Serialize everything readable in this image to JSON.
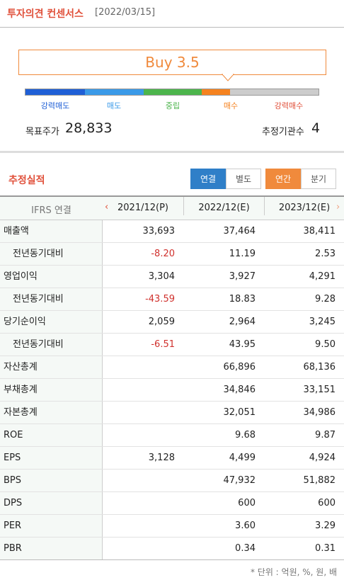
{
  "header": {
    "title": "투자의견 컨센서스",
    "date": "[2022/03/15]"
  },
  "consensus": {
    "rating": "Buy 3.5",
    "scale": [
      "강력매도",
      "매도",
      "중립",
      "매수",
      "강력매수"
    ],
    "target_price_label": "목표주가",
    "target_price": "28,833",
    "institutions_label": "추정기관수",
    "institutions": "4"
  },
  "section": {
    "title": "추정실적",
    "toggle1": [
      "연결",
      "별도"
    ],
    "toggle2": [
      "연간",
      "분기"
    ]
  },
  "table": {
    "corner": "IFRS 연결",
    "columns": [
      "2021/12(P)",
      "2022/12(E)",
      "2023/12(E)"
    ],
    "rows": [
      {
        "label": "매출액",
        "cells": [
          "33,693",
          "37,464",
          "38,411"
        ]
      },
      {
        "label": "전년동기대비",
        "sub": true,
        "cells": [
          "-8.20",
          "11.19",
          "2.53"
        ]
      },
      {
        "label": "영업이익",
        "cells": [
          "3,304",
          "3,927",
          "4,291"
        ]
      },
      {
        "label": "전년동기대비",
        "sub": true,
        "cells": [
          "-43.59",
          "18.83",
          "9.28"
        ]
      },
      {
        "label": "당기순이익",
        "cells": [
          "2,059",
          "2,964",
          "3,245"
        ]
      },
      {
        "label": "전년동기대비",
        "sub": true,
        "cells": [
          "-6.51",
          "43.95",
          "9.50"
        ]
      },
      {
        "label": "자산총계",
        "cells": [
          null,
          "66,896",
          "68,136"
        ]
      },
      {
        "label": "부채총계",
        "cells": [
          null,
          "34,846",
          "33,151"
        ]
      },
      {
        "label": "자본총계",
        "cells": [
          null,
          "32,051",
          "34,986"
        ]
      },
      {
        "label": "ROE",
        "cells": [
          null,
          "9.68",
          "9.87"
        ]
      },
      {
        "label": "EPS",
        "cells": [
          "3,128",
          "4,499",
          "4,924"
        ]
      },
      {
        "label": "BPS",
        "cells": [
          null,
          "47,932",
          "51,882"
        ]
      },
      {
        "label": "DPS",
        "cells": [
          null,
          "600",
          "600"
        ]
      },
      {
        "label": "PER",
        "cells": [
          null,
          "3.60",
          "3.29"
        ]
      },
      {
        "label": "PBR",
        "cells": [
          null,
          "0.34",
          "0.31"
        ]
      }
    ]
  },
  "footnote": "* 단위 : 억원, %, 원, 배"
}
